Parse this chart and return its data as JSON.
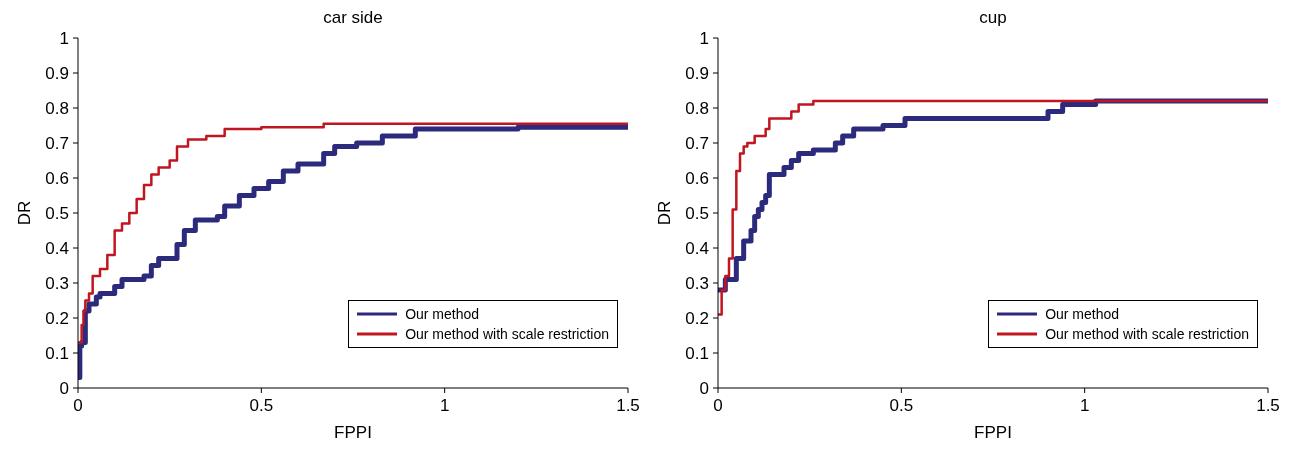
{
  "chart_data": [
    {
      "type": "step",
      "title": "car side",
      "xlabel": "FPPI",
      "ylabel": "DR",
      "xlim": [
        0,
        1.5
      ],
      "xticks": [
        0,
        0.5,
        1,
        1.5
      ],
      "ylim": [
        0,
        1
      ],
      "yticks": [
        0,
        0.1,
        0.2,
        0.3,
        0.4,
        0.5,
        0.6,
        0.7,
        0.8,
        0.9,
        1
      ],
      "grid": false,
      "legend": "bottom right",
      "series": [
        {
          "name": "Our method",
          "color": "#2b2a7d",
          "x": [
            0,
            0.005,
            0.01,
            0.02,
            0.03,
            0.05,
            0.06,
            0.1,
            0.12,
            0.18,
            0.2,
            0.22,
            0.27,
            0.29,
            0.32,
            0.38,
            0.4,
            0.44,
            0.48,
            0.52,
            0.56,
            0.6,
            0.67,
            0.7,
            0.76,
            0.83,
            0.92,
            1.2,
            1.5
          ],
          "values": [
            0.03,
            0.12,
            0.13,
            0.22,
            0.24,
            0.26,
            0.27,
            0.29,
            0.31,
            0.32,
            0.35,
            0.37,
            0.41,
            0.45,
            0.48,
            0.49,
            0.52,
            0.55,
            0.57,
            0.59,
            0.62,
            0.64,
            0.67,
            0.69,
            0.7,
            0.72,
            0.74,
            0.745,
            0.745
          ]
        },
        {
          "name": "Our method with scale restriction",
          "color": "#c0161f",
          "x": [
            0,
            0.01,
            0.015,
            0.02,
            0.03,
            0.04,
            0.06,
            0.08,
            0.1,
            0.12,
            0.14,
            0.16,
            0.18,
            0.2,
            0.22,
            0.25,
            0.27,
            0.3,
            0.35,
            0.4,
            0.5,
            0.67,
            1.5
          ],
          "values": [
            0.13,
            0.18,
            0.22,
            0.25,
            0.27,
            0.32,
            0.34,
            0.38,
            0.45,
            0.47,
            0.5,
            0.54,
            0.58,
            0.61,
            0.63,
            0.65,
            0.69,
            0.71,
            0.72,
            0.74,
            0.745,
            0.755,
            0.755
          ]
        }
      ]
    },
    {
      "type": "step",
      "title": "cup",
      "xlabel": "FPPI",
      "ylabel": "DR",
      "xlim": [
        0,
        1.5
      ],
      "xticks": [
        0,
        0.5,
        1,
        1.5
      ],
      "ylim": [
        0,
        1
      ],
      "yticks": [
        0,
        0.1,
        0.2,
        0.3,
        0.4,
        0.5,
        0.6,
        0.7,
        0.8,
        0.9,
        1
      ],
      "grid": false,
      "legend": "bottom right",
      "series": [
        {
          "name": "Our method",
          "color": "#2b2a7d",
          "x": [
            0,
            0.02,
            0.05,
            0.07,
            0.09,
            0.1,
            0.11,
            0.12,
            0.13,
            0.14,
            0.18,
            0.2,
            0.22,
            0.26,
            0.32,
            0.34,
            0.37,
            0.45,
            0.51,
            0.9,
            0.94,
            1.03,
            1.5
          ],
          "values": [
            0.28,
            0.31,
            0.37,
            0.42,
            0.45,
            0.49,
            0.51,
            0.53,
            0.55,
            0.61,
            0.63,
            0.65,
            0.67,
            0.68,
            0.7,
            0.72,
            0.74,
            0.75,
            0.77,
            0.79,
            0.81,
            0.82,
            0.82
          ]
        },
        {
          "name": "Our method with scale restriction",
          "color": "#c0161f",
          "x": [
            0,
            0.01,
            0.02,
            0.03,
            0.04,
            0.05,
            0.06,
            0.07,
            0.08,
            0.1,
            0.13,
            0.14,
            0.2,
            0.22,
            0.26,
            1.5
          ],
          "values": [
            0.21,
            0.28,
            0.32,
            0.37,
            0.51,
            0.62,
            0.67,
            0.69,
            0.7,
            0.72,
            0.74,
            0.77,
            0.79,
            0.81,
            0.82,
            0.82
          ]
        }
      ]
    }
  ]
}
